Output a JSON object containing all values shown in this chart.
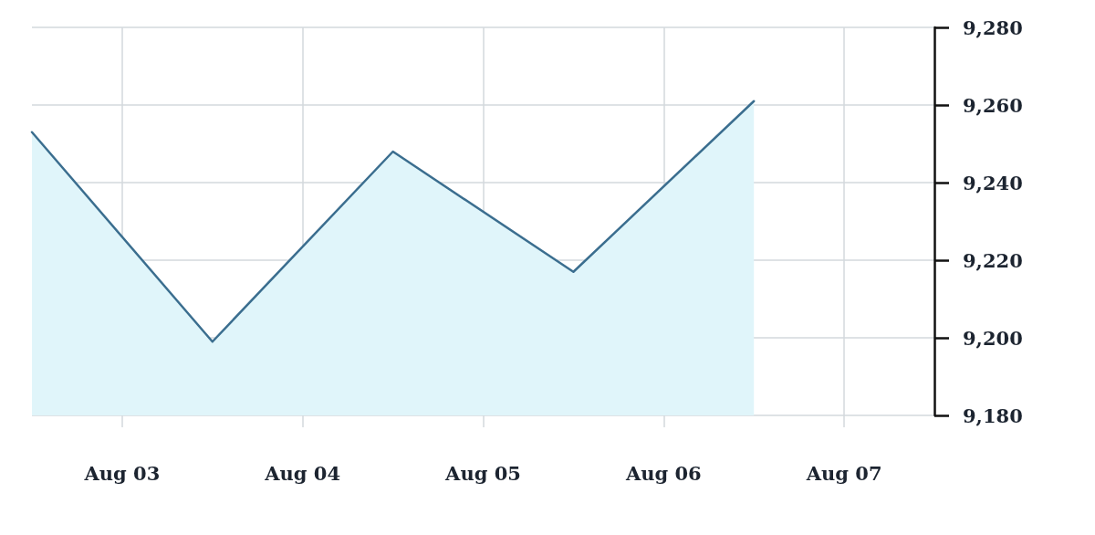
{
  "chart_data": {
    "type": "area",
    "x": [
      "--08-02T12:00",
      "--08-03T12:00",
      "--08-04T12:00",
      "--08-05T12:00",
      "--08-06T12:00"
    ],
    "values": [
      9253,
      9199,
      9248,
      9217,
      9261
    ],
    "color": "#3b6e8f",
    "xlim": [
      "--08-02T12:00",
      "--08-07T12:00"
    ],
    "xticks": [
      {
        "value": "--08-03",
        "label": "Aug 03"
      },
      {
        "value": "--08-04",
        "label": "Aug 04"
      },
      {
        "value": "--08-05",
        "label": "Aug 05"
      },
      {
        "value": "--08-06",
        "label": "Aug 06"
      },
      {
        "value": "--08-07",
        "label": "Aug 07"
      }
    ],
    "ylim": [
      9180,
      9280
    ],
    "yticks": [
      {
        "value": 9180,
        "label": "9,180"
      },
      {
        "value": 9200,
        "label": "9,200"
      },
      {
        "value": 9220,
        "label": "9,220"
      },
      {
        "value": 9240,
        "label": "9,240"
      },
      {
        "value": 9260,
        "label": "9,260"
      },
      {
        "value": 9280,
        "label": "9,280"
      }
    ],
    "grid": true,
    "marker": "none",
    "line_style": "solid"
  }
}
